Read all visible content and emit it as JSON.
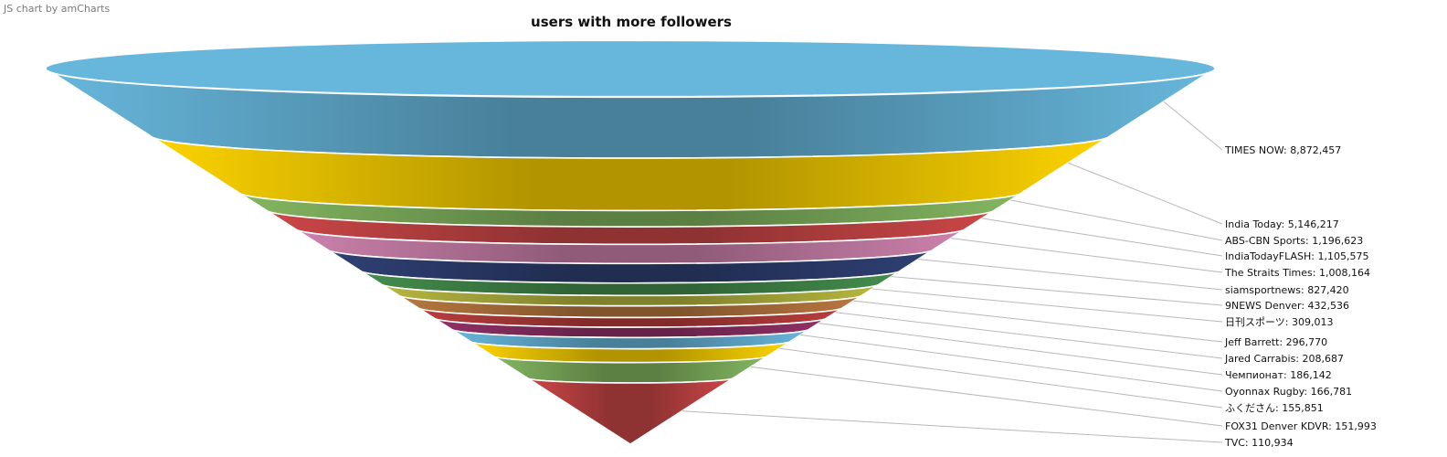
{
  "credit": "JS chart by amCharts",
  "chart_data": {
    "type": "funnel",
    "title": "users with more followers",
    "label_separator": ": ",
    "categories": [
      "TIMES NOW",
      "India Today",
      "ABS-CBN Sports",
      "IndiaTodayFLASH",
      "The Straits Times",
      "siamsportnews",
      "9NEWS Denver",
      "日刊スポーツ",
      "Jeff Barrett",
      "Jared Carrabis",
      "Чемпионат",
      "Oyonnax Rugby",
      "ふくださん",
      "FOX31 Denver KDVR",
      "TVC"
    ],
    "values": [
      8872457,
      5146217,
      1196623,
      1105575,
      1008164,
      827420,
      432536,
      309013,
      296770,
      208687,
      186142,
      166781,
      155851,
      151993,
      110934
    ],
    "value_labels": [
      "8,872,457",
      "5,146,217",
      "1,196,623",
      "1,105,575",
      "1,008,164",
      "827,420",
      "432,536",
      "309,013",
      "296,770",
      "208,687",
      "186,142",
      "166,781",
      "155,851",
      "151,993",
      "110,934"
    ],
    "colors": [
      "#67b7dc",
      "#fdd400",
      "#84b761",
      "#cc4748",
      "#cd82ad",
      "#2f4074",
      "#448e4d",
      "#b7b83f",
      "#b9783f",
      "#b93e3d",
      "#913167",
      "#67b7dc",
      "#fdd400",
      "#84b761",
      "#cc4748"
    ],
    "legend": "labels-right"
  }
}
